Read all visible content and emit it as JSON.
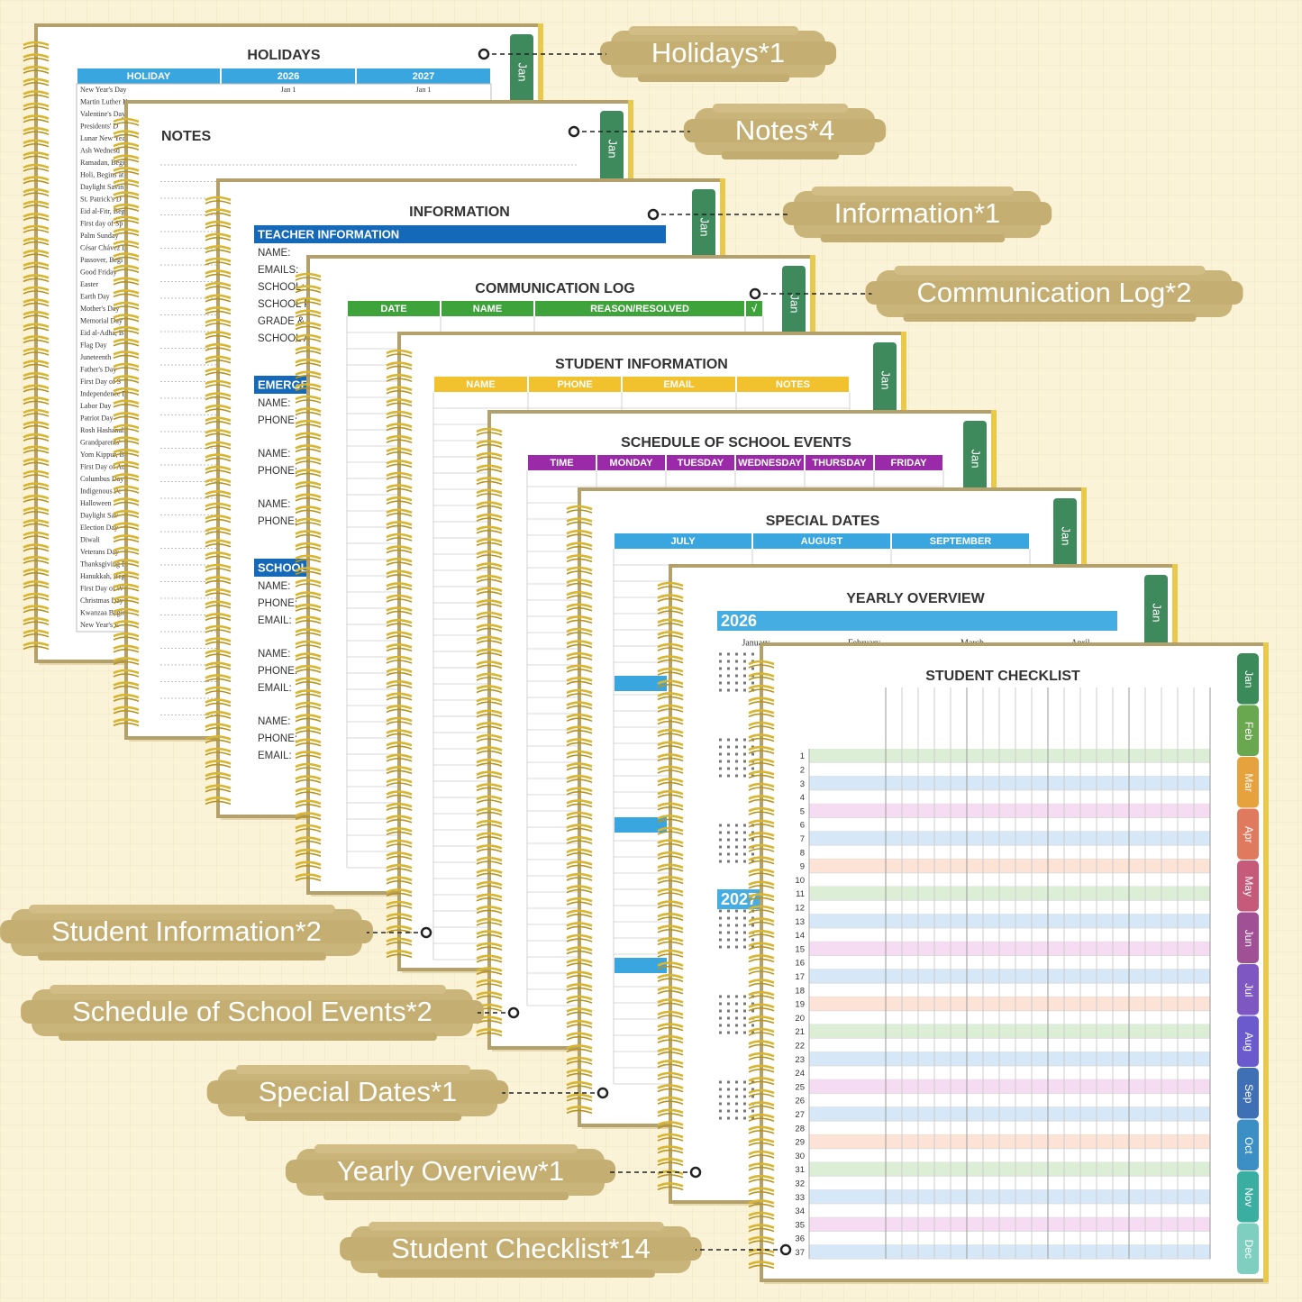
{
  "callouts": [
    "Holidays*1",
    "Notes*4",
    "Information*1",
    "Communication Log*2",
    "Student Information*2",
    "Schedule of School Events*2",
    "Special Dates*1",
    "Yearly Overview*1",
    "Student Checklist*14"
  ],
  "pages": [
    {
      "title": "HOLIDAYS",
      "tab": "Jan",
      "header_color": "#3aa6e0",
      "columns": [
        "HOLIDAY",
        "2026",
        "2027"
      ],
      "first_dates": [
        "Jan 1",
        "Jan 1"
      ],
      "rows": [
        "New Year's Day",
        "Martin Luther K",
        "Valentine's Day",
        "Presidents' D",
        "Lunar New Yea",
        "Ash Wednesd",
        "Ramadan, Begi",
        "Holi, Begins at",
        "Daylight Savin",
        "St. Patrick's D",
        "Eid al-Fitr, Beg",
        "First day of Sp",
        "Palm Sunday",
        "César Chávez D",
        "Passover, Begi",
        "Good Friday",
        "Easter",
        "Earth Day",
        "Mother's Day",
        "Memorial Day",
        "Eid al-Adha, B",
        "Flag Day",
        "Juneteenth",
        "Father's Day",
        "First Day of S",
        "Independence D",
        "Labor Day",
        "Patriot Day",
        "Rosh Hashanah",
        "Grandparents'",
        "Yom Kippur, B",
        "First Day of Au",
        "Columbus Day",
        "Indigenous Pe",
        "Halloween",
        "Daylight Sav",
        "Election Day",
        "Diwali",
        "Veterans Day",
        "Thanksgiving D",
        "Hanukkah, Beg",
        "First Day of W",
        "Christmas Day",
        "Kwanzaa Begin",
        "New Year's E"
      ]
    },
    {
      "title": "NOTES",
      "tab": "Jan"
    },
    {
      "title": "INFORMATION",
      "tab": "Jan",
      "sections": [
        {
          "title": "TEACHER INFORMATION",
          "color": "#1469b8",
          "groups": [
            [
              "NAME:",
              "EMAILS:",
              "SCHOOL:",
              "SCHOOL P",
              "GRADE &",
              "SCHOOL A"
            ]
          ]
        },
        {
          "title": "EMERGE",
          "color": "#1469b8",
          "groups": [
            [
              "NAME:",
              "PHONE:"
            ],
            [
              "NAME:",
              "PHONE:"
            ],
            [
              "NAME:",
              "PHONE:"
            ]
          ]
        },
        {
          "title": "SCHOOL",
          "color": "#1469b8",
          "groups": [
            [
              "NAME:",
              "PHONE:",
              "EMAIL:"
            ],
            [
              "NAME:",
              "PHONE:",
              "EMAIL:"
            ],
            [
              "NAME:",
              "PHONE:",
              "EMAIL:"
            ]
          ]
        }
      ]
    },
    {
      "title": "COMMUNICATION LOG",
      "tab": "Jan",
      "header_color": "#3ea33a",
      "columns": [
        "DATE",
        "NAME",
        "REASON/RESOLVED",
        "√"
      ]
    },
    {
      "title": "STUDENT INFORMATION",
      "tab": "Jan",
      "header_color": "#f2c12e",
      "columns": [
        "NAME",
        "PHONE",
        "EMAIL",
        "NOTES"
      ]
    },
    {
      "title": "SCHEDULE OF SCHOOL EVENTS",
      "tab": "Jan",
      "header_color": "#9a2aa8",
      "columns": [
        "TIME",
        "MONDAY",
        "TUESDAY",
        "WEDNESDAY",
        "THURSDAY",
        "FRIDAY"
      ]
    },
    {
      "title": "SPECIAL DATES",
      "tab": "Jan",
      "header_color": "#3aa6e0",
      "columns": [
        "JULY",
        "AUGUST",
        "SEPTEMBER"
      ]
    },
    {
      "title": "YEARLY OVERVIEW",
      "tab": "Jan",
      "header_color": "#45ade2",
      "years": [
        "2026",
        "2027"
      ],
      "months": [
        "January",
        "February",
        "March",
        "April"
      ]
    },
    {
      "title": "STUDENT CHECKLIST",
      "tab": "Jan",
      "numbers": [
        1,
        2,
        3,
        4,
        5,
        6,
        7,
        8,
        9,
        10,
        11,
        12,
        13,
        14,
        15,
        16,
        17,
        18,
        19,
        20,
        21,
        22,
        23,
        24,
        25,
        26,
        27,
        28,
        29,
        30,
        31,
        32,
        33,
        34,
        35,
        36,
        37
      ],
      "row_colors": [
        "#dcefd6",
        "#d6e7f7",
        "#f6dcf2",
        "#d6e7f7",
        "#fde2d6"
      ],
      "month_tabs": [
        {
          "name": "Jan",
          "color": "#3b8a5a"
        },
        {
          "name": "Feb",
          "color": "#6aa84f"
        },
        {
          "name": "Mar",
          "color": "#e6a23c"
        },
        {
          "name": "Apr",
          "color": "#e07a5f"
        },
        {
          "name": "May",
          "color": "#c55a7a"
        },
        {
          "name": "Jun",
          "color": "#a05195"
        },
        {
          "name": "Jul",
          "color": "#7e57c2"
        },
        {
          "name": "Aug",
          "color": "#6a5acd"
        },
        {
          "name": "Sep",
          "color": "#3f6fb5"
        },
        {
          "name": "Oct",
          "color": "#3b8fc4"
        },
        {
          "name": "Nov",
          "color": "#3aaea0"
        },
        {
          "name": "Dec",
          "color": "#7fcfc0"
        }
      ]
    }
  ]
}
